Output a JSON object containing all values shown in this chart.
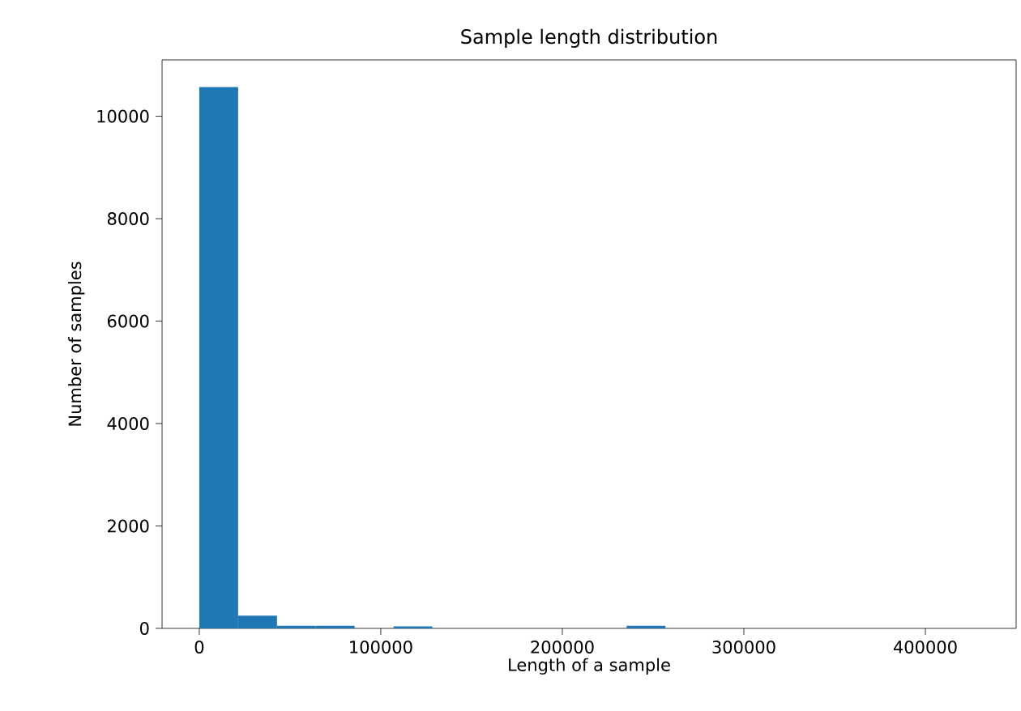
{
  "chart_data": {
    "type": "histogram",
    "title": "Sample length distribution",
    "xlabel": "Length of a sample",
    "ylabel": "Number of samples",
    "bins": [
      0,
      21400,
      42800,
      64200,
      85600,
      107000,
      128400,
      149800,
      171200,
      192600,
      214000,
      235400,
      256800,
      278200,
      299600,
      321000,
      342400,
      363800,
      385200,
      406600,
      428000
    ],
    "values": [
      10570,
      250,
      50,
      50,
      0,
      40,
      0,
      0,
      0,
      0,
      0,
      50,
      0,
      0,
      0,
      0,
      0,
      0,
      0,
      0
    ],
    "color": "#1f77b4",
    "xlim": [
      -20500,
      450000
    ],
    "ylim": [
      0,
      11100
    ],
    "xticks": [
      0,
      100000,
      200000,
      300000,
      400000
    ],
    "yticks": [
      0,
      2000,
      4000,
      6000,
      8000,
      10000
    ],
    "grid": false
  }
}
